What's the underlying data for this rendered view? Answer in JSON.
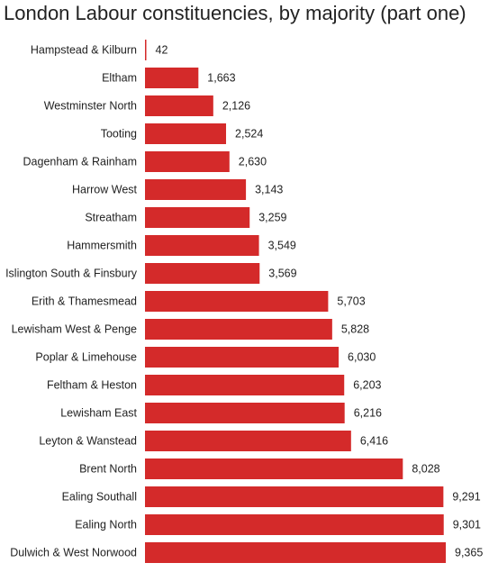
{
  "chart_data": {
    "type": "bar",
    "orientation": "horizontal",
    "title": "London Labour constituencies, by majority (part one)",
    "xlabel": "",
    "ylabel": "",
    "grid": false,
    "bar_color": "#d42a2a",
    "xlim": [
      0,
      9365
    ],
    "categories": [
      "Hampstead & Kilburn",
      "Eltham",
      "Westminster North",
      "Tooting",
      "Dagenham & Rainham",
      "Harrow West",
      "Streatham",
      "Hammersmith",
      "Islington South & Finsbury",
      "Erith & Thamesmead",
      "Lewisham West & Penge",
      "Poplar & Limehouse",
      "Feltham & Heston",
      "Lewisham East",
      "Leyton & Wanstead",
      "Brent North",
      "Ealing Southall",
      "Ealing North",
      "Dulwich & West Norwood"
    ],
    "values": [
      42,
      1663,
      2126,
      2524,
      2630,
      3143,
      3259,
      3549,
      3569,
      5703,
      5828,
      6030,
      6203,
      6216,
      6416,
      8028,
      9291,
      9301,
      9365
    ],
    "value_labels": [
      "42",
      "1,663",
      "2,126",
      "2,524",
      "2,630",
      "3,143",
      "3,259",
      "3,549",
      "3,569",
      "5,703",
      "5,828",
      "6,030",
      "6,203",
      "6,216",
      "6,416",
      "8,028",
      "9,291",
      "9,301",
      "9,365"
    ]
  }
}
